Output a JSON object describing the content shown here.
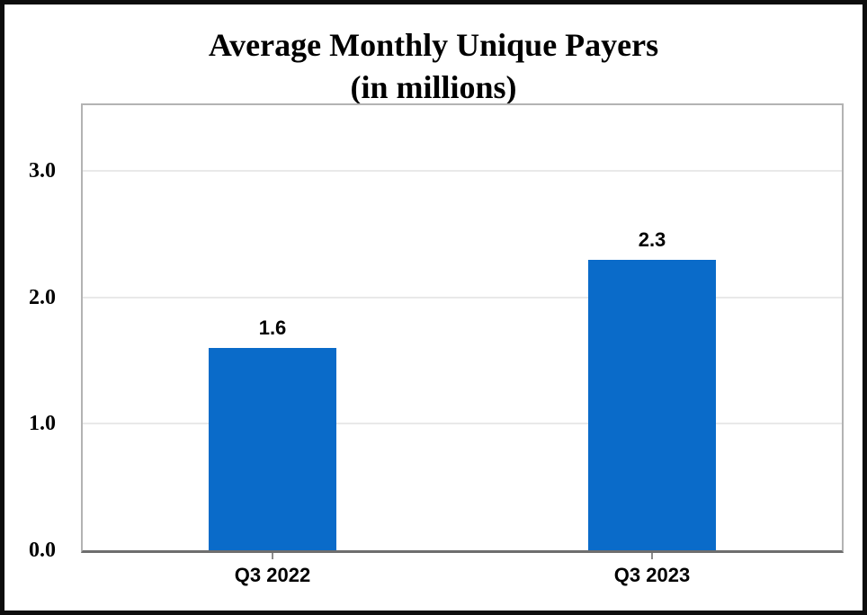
{
  "chart_data": {
    "type": "bar",
    "title": "Average Monthly Unique Payers",
    "subtitle": "(in millions)",
    "categories": [
      "Q3 2022",
      "Q3 2023"
    ],
    "values": [
      1.6,
      2.3
    ],
    "bar_labels": [
      "1.6",
      "2.3"
    ],
    "xlabel": "",
    "ylabel": "",
    "ylim": [
      0,
      3.52
    ],
    "yticks": [
      {
        "value": 0.0,
        "label": "0.0"
      },
      {
        "value": 1.0,
        "label": "1.0"
      },
      {
        "value": 2.0,
        "label": "2.0"
      },
      {
        "value": 3.0,
        "label": "3.0"
      }
    ],
    "grid": "horizontal",
    "legend": "none"
  },
  "colors": {
    "bar": "#0a6bc9",
    "gridline": "#e9e9e9",
    "plot_border": "#b3b3b3",
    "axis_line": "#6e6e6e",
    "tick": "#8c8c8c",
    "text": "#000000",
    "frame_border": "#0d0d0d",
    "background": "#ffffff"
  }
}
